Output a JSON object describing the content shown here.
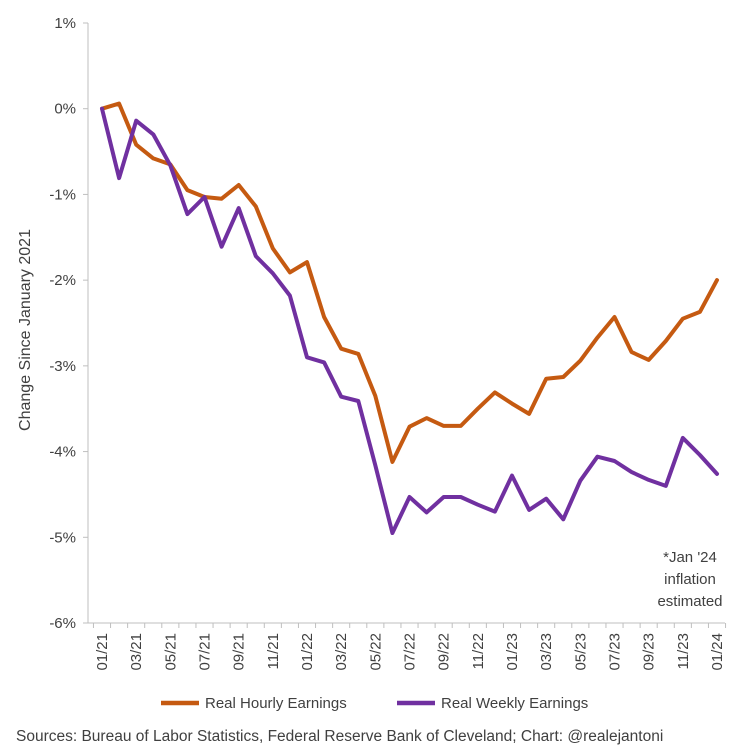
{
  "chart_data": {
    "type": "line",
    "categories": [
      "01/21",
      "02/21",
      "03/21",
      "04/21",
      "05/21",
      "06/21",
      "07/21",
      "08/21",
      "09/21",
      "10/21",
      "11/21",
      "12/21",
      "01/22",
      "02/22",
      "03/22",
      "04/22",
      "05/22",
      "06/22",
      "07/22",
      "08/22",
      "09/22",
      "10/22",
      "11/22",
      "12/22",
      "01/23",
      "02/23",
      "03/23",
      "04/23",
      "05/23",
      "06/23",
      "07/23",
      "08/23",
      "09/23",
      "10/23",
      "11/23",
      "12/23",
      "01/24"
    ],
    "x_tick_labels": [
      "01/21",
      "03/21",
      "05/21",
      "07/21",
      "09/21",
      "11/21",
      "01/22",
      "03/22",
      "05/22",
      "07/22",
      "09/22",
      "11/22",
      "01/23",
      "03/23",
      "05/23",
      "07/23",
      "09/23",
      "11/23",
      "01/24"
    ],
    "series": [
      {
        "name": "Real Hourly Earnings",
        "color": "#C55A11",
        "values": [
          0.0,
          0.06,
          -0.42,
          -0.58,
          -0.65,
          -0.95,
          -1.03,
          -1.05,
          -0.89,
          -1.14,
          -1.63,
          -1.91,
          -1.79,
          -2.43,
          -2.8,
          -2.86,
          -3.35,
          -4.12,
          -3.71,
          -3.61,
          -3.7,
          -3.7,
          -3.5,
          -3.31,
          -3.44,
          -3.56,
          -3.15,
          -3.13,
          -2.94,
          -2.67,
          -2.43,
          -2.84,
          -2.93,
          -2.71,
          -2.45,
          -2.37,
          -2.0
        ]
      },
      {
        "name": "Real Weekly Earnings",
        "color": "#7030A0",
        "values": [
          0.0,
          -0.81,
          -0.14,
          -0.3,
          -0.66,
          -1.23,
          -1.03,
          -1.61,
          -1.16,
          -1.72,
          -1.92,
          -2.18,
          -2.9,
          -2.96,
          -3.36,
          -3.41,
          -4.16,
          -4.95,
          -4.53,
          -4.71,
          -4.53,
          -4.53,
          -4.62,
          -4.7,
          -4.28,
          -4.68,
          -4.55,
          -4.79,
          -4.34,
          -4.06,
          -4.11,
          -4.24,
          -4.33,
          -4.4,
          -3.84,
          -4.04,
          -4.26
        ]
      }
    ],
    "ylim": [
      -6,
      1
    ],
    "yticks": [
      -6,
      -5,
      -4,
      -3,
      -2,
      -1,
      0,
      1
    ],
    "ytick_labels": [
      "-6%",
      "-5%",
      "-4%",
      "-3%",
      "-2%",
      "-1%",
      "0%",
      "1%"
    ],
    "ylabel": "Change Since January 2021",
    "legend_position": "bottom",
    "grid": false,
    "annotation": [
      "*Jan '24",
      "inflation",
      "estimated"
    ],
    "source": "Sources: Bureau of Labor Statistics, Federal Reserve Bank of Cleveland; Chart: @realejantoni"
  }
}
